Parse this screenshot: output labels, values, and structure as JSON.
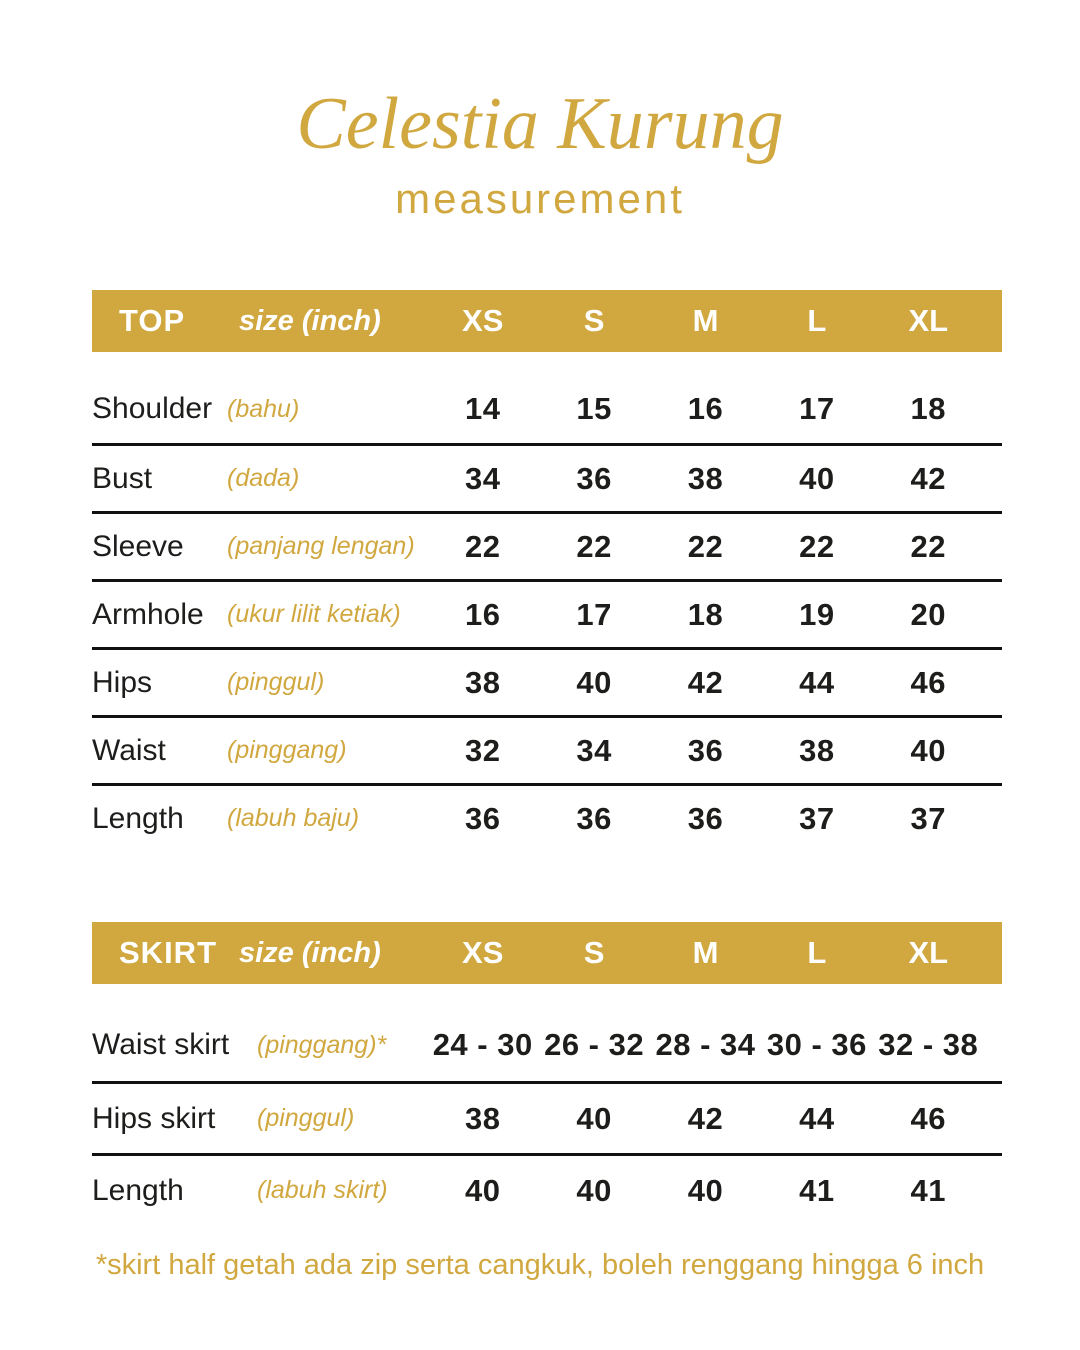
{
  "title": "Celestia Kurung",
  "subtitle": "measurement",
  "footnote": "*skirt half getah ada zip serta cangkuk, boleh renggang hingga 6 inch",
  "colors": {
    "gold": "#D1A83F",
    "header-text": "#FFFFFF",
    "text": "#1D1D1B",
    "line": "#111111"
  },
  "chart_data": [
    {
      "type": "table",
      "title": "TOP",
      "unit_label": "size (inch)",
      "columns": [
        "XS",
        "S",
        "M",
        "L",
        "XL"
      ],
      "rows": [
        {
          "label": "Shoulder",
          "malay_label": "(bahu)",
          "values": [
            "14",
            "15",
            "16",
            "17",
            "18"
          ]
        },
        {
          "label": "Bust",
          "malay_label": "(dada)",
          "values": [
            "34",
            "36",
            "38",
            "40",
            "42"
          ]
        },
        {
          "label": "Sleeve",
          "malay_label": "(panjang lengan)",
          "values": [
            "22",
            "22",
            "22",
            "22",
            "22"
          ]
        },
        {
          "label": "Armhole",
          "malay_label": "(ukur lilit ketiak)",
          "values": [
            "16",
            "17",
            "18",
            "19",
            "20"
          ]
        },
        {
          "label": "Hips",
          "malay_label": "(pinggul)",
          "values": [
            "38",
            "40",
            "42",
            "44",
            "46"
          ]
        },
        {
          "label": "Waist",
          "malay_label": "(pinggang)",
          "values": [
            "32",
            "34",
            "36",
            "38",
            "40"
          ]
        },
        {
          "label": "Length",
          "malay_label": "(labuh baju)",
          "values": [
            "36",
            "36",
            "36",
            "37",
            "37"
          ]
        }
      ]
    },
    {
      "type": "table",
      "title": "SKIRT",
      "unit_label": "size (inch)",
      "columns": [
        "XS",
        "S",
        "M",
        "L",
        "XL"
      ],
      "rows": [
        {
          "label": "Waist skirt",
          "malay_label": "(pinggang)*",
          "values": [
            "24 - 30",
            "26 - 32",
            "28 - 34",
            "30 - 36",
            "32 - 38"
          ]
        },
        {
          "label": "Hips skirt",
          "malay_label": "(pinggul)",
          "values": [
            "38",
            "40",
            "42",
            "44",
            "46"
          ]
        },
        {
          "label": "Length",
          "malay_label": "(labuh skirt)",
          "values": [
            "40",
            "40",
            "40",
            "41",
            "41"
          ]
        }
      ]
    }
  ]
}
